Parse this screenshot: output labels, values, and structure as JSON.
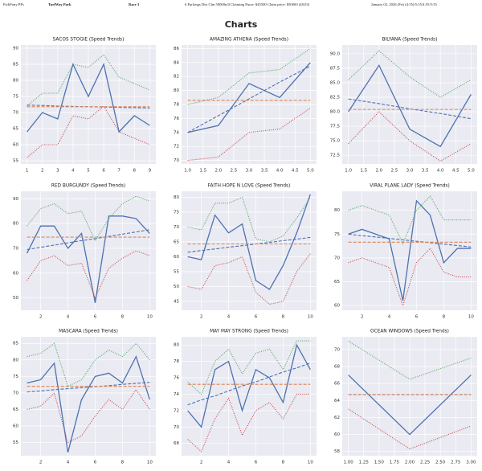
{
  "header": {
    "brand": "PickPony PPs",
    "track": "TurfWay Park",
    "race": "Race 3",
    "description": "6 Furlongs Dirt Clm 50000n3l Claiming Purse: $45500 Claim price: $50000 (48.03)",
    "date": "January 02, 2026 (Fri) (4:55)/5:55/4:55/5:55"
  },
  "page_title": "Charts",
  "chart_data": [
    {
      "type": "line",
      "title": "SACOS STOGIE (Speed Trends)",
      "x": [
        1,
        2,
        3,
        4,
        5,
        6,
        7,
        8,
        9
      ],
      "xlim": [
        0.6,
        9.4
      ],
      "xticks": [
        1,
        2,
        3,
        4,
        5,
        6,
        7,
        8,
        9
      ],
      "ylim": [
        54,
        91
      ],
      "yticks": [
        55,
        60,
        65,
        70,
        75,
        80,
        85,
        90
      ],
      "series": [
        {
          "color": "#4c72b0",
          "style": "solid",
          "values": [
            64,
            70,
            68,
            85,
            75,
            85,
            64,
            69,
            66
          ]
        },
        {
          "color": "#4c72b0",
          "style": "dashed",
          "values": [
            72.3,
            72.2,
            72.0,
            71.9,
            71.8,
            71.7,
            71.6,
            71.5,
            71.4
          ]
        },
        {
          "color": "#dd8452",
          "style": "dashed",
          "values": [
            71.8,
            71.8,
            71.8,
            71.8,
            71.8,
            71.8,
            71.8,
            71.8,
            71.8
          ]
        },
        {
          "color": "#55a868",
          "style": "dotted",
          "values": [
            72,
            76,
            76,
            85,
            84,
            88,
            81,
            79,
            77
          ]
        },
        {
          "color": "#c44e52",
          "style": "dotted",
          "values": [
            56,
            60,
            60,
            69,
            68,
            72,
            64,
            62,
            60
          ]
        }
      ]
    },
    {
      "type": "line",
      "title": "AMAZING ATHENA (Speed Trends)",
      "x": [
        1,
        2,
        3,
        4,
        5
      ],
      "xlim": [
        0.8,
        5.2
      ],
      "xticks": [
        {
          "value": 1,
          "label": "1.0"
        },
        1.5,
        {
          "value": 2,
          "label": "2.0"
        },
        2.5,
        {
          "value": 3,
          "label": "3.0"
        },
        3.5,
        {
          "value": 4,
          "label": "4.0"
        },
        4.5,
        {
          "value": 5,
          "label": "5.0"
        }
      ],
      "ylim": [
        69.5,
        86.5
      ],
      "yticks": [
        70,
        72,
        74,
        76,
        78,
        80,
        82,
        84,
        86
      ],
      "series": [
        {
          "color": "#4c72b0",
          "style": "solid",
          "values": [
            74,
            75,
            81,
            79,
            84
          ]
        },
        {
          "color": "#4c72b0",
          "style": "dashed",
          "values": [
            74,
            76.4,
            78.8,
            81.2,
            83.5
          ]
        },
        {
          "color": "#dd8452",
          "style": "dashed",
          "values": [
            78.6,
            78.6,
            78.6,
            78.6,
            78.6
          ]
        },
        {
          "color": "#55a868",
          "style": "dotted",
          "values": [
            78,
            79,
            82.5,
            83,
            86
          ]
        },
        {
          "color": "#c44e52",
          "style": "dotted",
          "values": [
            70,
            70.5,
            74,
            74.5,
            77.5
          ]
        }
      ]
    },
    {
      "type": "line",
      "title": "BILYANA (Speed Trends)",
      "x": [
        1,
        2,
        3,
        4,
        5
      ],
      "xlim": [
        0.8,
        5.2
      ],
      "xticks": [
        {
          "value": 1,
          "label": "1.0"
        },
        1.5,
        {
          "value": 2,
          "label": "2.0"
        },
        2.5,
        {
          "value": 3,
          "label": "3.0"
        },
        3.5,
        {
          "value": 4,
          "label": "4.0"
        },
        4.5,
        {
          "value": 5,
          "label": "5.0"
        }
      ],
      "ylim": [
        71,
        91.5
      ],
      "yticks": [
        72.5,
        {
          "value": 75,
          "label": "75.0"
        },
        77.5,
        {
          "value": 80,
          "label": "80.0"
        },
        82.5,
        {
          "value": 85,
          "label": "85.0"
        },
        87.5,
        {
          "value": 90,
          "label": "90.0"
        }
      ],
      "series": [
        {
          "color": "#4c72b0",
          "style": "solid",
          "values": [
            80,
            88,
            77,
            74,
            83
          ]
        },
        {
          "color": "#4c72b0",
          "style": "dashed",
          "values": [
            82.2,
            81.4,
            80.5,
            79.7,
            78.8
          ]
        },
        {
          "color": "#dd8452",
          "style": "dashed",
          "values": [
            80.4,
            80.4,
            80.4,
            80.4,
            80.4
          ]
        },
        {
          "color": "#55a868",
          "style": "dotted",
          "values": [
            85.5,
            90.5,
            86,
            82.5,
            85.5
          ]
        },
        {
          "color": "#c44e52",
          "style": "dotted",
          "values": [
            74.5,
            80,
            75,
            71.5,
            74.5
          ]
        }
      ]
    },
    {
      "type": "line",
      "title": "RED BURGUNDY (Speed Trends)",
      "x": [
        1,
        2,
        3,
        4,
        5,
        6,
        7,
        8,
        9,
        10
      ],
      "xlim": [
        0.55,
        10.45
      ],
      "xticks": [
        2,
        4,
        6,
        8,
        10
      ],
      "ylim": [
        45,
        93
      ],
      "yticks": [
        50,
        60,
        70,
        80,
        90
      ],
      "series": [
        {
          "color": "#4c72b0",
          "style": "solid",
          "values": [
            68,
            79,
            79,
            70,
            76,
            48,
            83,
            83,
            82,
            76
          ]
        },
        {
          "color": "#4c72b0",
          "style": "dashed",
          "values": [
            69.5,
            70.4,
            71.3,
            72.2,
            73.1,
            73.9,
            74.8,
            75.7,
            76.6,
            77.5
          ]
        },
        {
          "color": "#dd8452",
          "style": "dashed",
          "values": [
            74.5,
            74.5,
            74.5,
            74.5,
            74.5,
            74.5,
            74.5,
            74.5,
            74.5,
            74.5
          ]
        },
        {
          "color": "#55a868",
          "style": "dotted",
          "values": [
            79,
            86,
            88,
            84,
            85,
            73,
            82,
            88,
            91,
            89
          ]
        },
        {
          "color": "#c44e52",
          "style": "dotted",
          "values": [
            57,
            65,
            67,
            63,
            64,
            50,
            62,
            66,
            69,
            67
          ]
        }
      ]
    },
    {
      "type": "line",
      "title": "FAITH HOPE N LOVE (Speed Trends)",
      "x": [
        1,
        2,
        3,
        4,
        5,
        6,
        7,
        8,
        9,
        10
      ],
      "xlim": [
        0.55,
        10.45
      ],
      "xticks": [
        2,
        4,
        6,
        8,
        10
      ],
      "ylim": [
        42,
        82
      ],
      "yticks": [
        45,
        50,
        55,
        60,
        65,
        70,
        75,
        80
      ],
      "series": [
        {
          "color": "#4c72b0",
          "style": "solid",
          "values": [
            60,
            59,
            74,
            68,
            71,
            52,
            49,
            57,
            68,
            81
          ]
        },
        {
          "color": "#4c72b0",
          "style": "dashed",
          "values": [
            61.5,
            62.1,
            62.6,
            63.2,
            63.7,
            64.3,
            64.8,
            65.4,
            65.9,
            66.5
          ]
        },
        {
          "color": "#dd8452",
          "style": "dashed",
          "values": [
            64.3,
            64.3,
            64.3,
            64.3,
            64.3,
            64.3,
            64.3,
            64.3,
            64.3,
            64.3
          ]
        },
        {
          "color": "#55a868",
          "style": "dotted",
          "values": [
            70,
            69,
            78,
            78,
            80,
            66,
            65,
            67,
            73,
            80
          ]
        },
        {
          "color": "#c44e52",
          "style": "dotted",
          "values": [
            50,
            49,
            57,
            58,
            60,
            48,
            44,
            45,
            55,
            61
          ]
        }
      ]
    },
    {
      "type": "line",
      "title": "VIRAL PLANE LADY (Speed Trends)",
      "x": [
        1,
        2,
        3,
        4,
        5,
        6,
        7,
        8,
        9,
        10
      ],
      "xlim": [
        0.55,
        10.45
      ],
      "xticks": [
        2,
        4,
        6,
        8,
        10
      ],
      "ylim": [
        59,
        84
      ],
      "yticks": [
        60,
        65,
        70,
        75,
        80
      ],
      "series": [
        {
          "color": "#4c72b0",
          "style": "solid",
          "values": [
            75,
            76,
            75,
            74,
            61,
            82,
            79,
            69,
            72,
            72
          ]
        },
        {
          "color": "#4c72b0",
          "style": "dashed",
          "values": [
            75,
            74.7,
            74.4,
            74.1,
            73.8,
            73.5,
            73.2,
            72.9,
            72.6,
            72.3
          ]
        },
        {
          "color": "#dd8452",
          "style": "dashed",
          "values": [
            73.3,
            73.3,
            73.3,
            73.3,
            73.3,
            73.3,
            73.3,
            73.3,
            73.3,
            73.3
          ]
        },
        {
          "color": "#55a868",
          "style": "dotted",
          "values": [
            80,
            81,
            80,
            79,
            73,
            80,
            83,
            78,
            78,
            78
          ]
        },
        {
          "color": "#c44e52",
          "style": "dotted",
          "values": [
            69,
            70,
            69,
            68,
            60,
            69,
            72,
            67,
            66,
            66
          ]
        }
      ]
    },
    {
      "type": "line",
      "title": "MASCARA (Speed Trends)",
      "x": [
        1,
        2,
        3,
        4,
        5,
        6,
        7,
        8,
        9,
        10
      ],
      "xlim": [
        0.55,
        10.45
      ],
      "xticks": [
        2,
        4,
        6,
        8,
        10
      ],
      "ylim": [
        51,
        87
      ],
      "yticks": [
        55,
        60,
        65,
        70,
        75,
        80,
        85
      ],
      "series": [
        {
          "color": "#4c72b0",
          "style": "solid",
          "values": [
            73,
            74,
            79,
            52,
            68,
            75,
            76,
            73,
            81,
            68
          ]
        },
        {
          "color": "#4c72b0",
          "style": "dashed",
          "values": [
            70.3,
            70.6,
            71,
            71.3,
            71.6,
            71.9,
            72.2,
            72.6,
            72.9,
            73.2
          ]
        },
        {
          "color": "#dd8452",
          "style": "dashed",
          "values": [
            72,
            72,
            72,
            72,
            72,
            72,
            72,
            72,
            72,
            72
          ]
        },
        {
          "color": "#55a868",
          "style": "dotted",
          "values": [
            81,
            82,
            85,
            72,
            74,
            80,
            83,
            81,
            85,
            80
          ]
        },
        {
          "color": "#c44e52",
          "style": "dotted",
          "values": [
            65,
            66,
            70,
            55,
            57,
            63,
            68,
            65,
            71,
            65
          ]
        }
      ]
    },
    {
      "type": "line",
      "title": "MAY MAY STRONG (Speed Trends)",
      "x": [
        1,
        2,
        3,
        4,
        5,
        6,
        7,
        8,
        9,
        10
      ],
      "xlim": [
        0.55,
        10.45
      ],
      "xticks": [
        2,
        4,
        6,
        8,
        10
      ],
      "ylim": [
        66.5,
        81
      ],
      "yticks": [
        68,
        70,
        72,
        74,
        76,
        78,
        80
      ],
      "series": [
        {
          "color": "#4c72b0",
          "style": "solid",
          "values": [
            72,
            70,
            77,
            78,
            72,
            77,
            76,
            73,
            80,
            77
          ]
        },
        {
          "color": "#4c72b0",
          "style": "dashed",
          "values": [
            72.7,
            73.3,
            73.8,
            74.4,
            75,
            75.5,
            76.1,
            76.7,
            77.2,
            77.8
          ]
        },
        {
          "color": "#dd8452",
          "style": "dashed",
          "values": [
            75.2,
            75.2,
            75.2,
            75.2,
            75.2,
            75.2,
            75.2,
            75.2,
            75.2,
            75.2
          ]
        },
        {
          "color": "#55a868",
          "style": "dotted",
          "values": [
            75.5,
            74,
            78,
            79.5,
            76.5,
            79,
            79.5,
            77,
            80.5,
            80.5
          ]
        },
        {
          "color": "#c44e52",
          "style": "dotted",
          "values": [
            68.5,
            67,
            71,
            73.5,
            69,
            72,
            73,
            71,
            74,
            74
          ]
        }
      ]
    },
    {
      "type": "line",
      "title": "OCEAN WINDOWS (Speed Trends)",
      "x": [
        1,
        2,
        3
      ],
      "xlim": [
        0.9,
        3.1
      ],
      "xticks": [
        {
          "value": 1,
          "label": "1.00"
        },
        1.25,
        {
          "value": 1.5,
          "label": "1.50"
        },
        1.75,
        {
          "value": 2,
          "label": "2.00"
        },
        2.25,
        {
          "value": 2.5,
          "label": "2.50"
        },
        2.75,
        {
          "value": 3,
          "label": "3.00"
        }
      ],
      "ylim": [
        57.5,
        71.5
      ],
      "yticks": [
        58,
        60,
        62,
        64,
        66,
        68,
        70
      ],
      "series": [
        {
          "color": "#4c72b0",
          "style": "solid",
          "values": [
            67,
            60,
            67
          ]
        },
        {
          "color": "#4c72b0",
          "style": "dashed",
          "values": [
            64.7,
            64.7,
            64.7
          ]
        },
        {
          "color": "#dd8452",
          "style": "dashed",
          "values": [
            64.7,
            64.7,
            64.7
          ]
        },
        {
          "color": "#55a868",
          "style": "dotted",
          "values": [
            71,
            66.5,
            69
          ]
        },
        {
          "color": "#c44e52",
          "style": "dotted",
          "values": [
            63,
            58.3,
            61
          ]
        }
      ]
    }
  ]
}
